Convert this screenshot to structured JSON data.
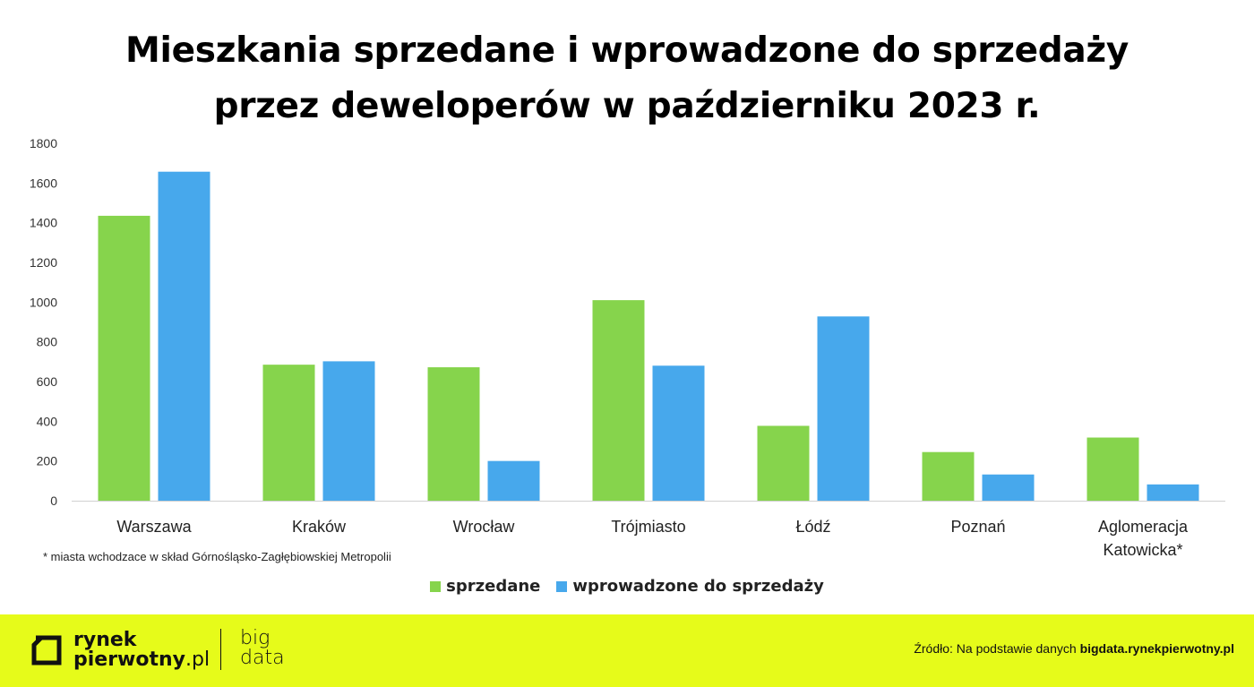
{
  "title_line1": "Mieszkania sprzedane i wprowadzone do sprzedaży",
  "title_line2": "przez deweloperów w październiku 2023 r.",
  "footnote": "* miasta wchodzace w skład Górnośląsko-Zagłębiowskiej Metropolii",
  "legend": [
    {
      "label": "sprzedane",
      "color": "#86d44c"
    },
    {
      "label": "wprowadzone do sprzedaży",
      "color": "#47a8ec"
    }
  ],
  "footer": {
    "logo_line1": "rynek",
    "logo_line2_bold": "pierwotny",
    "logo_line2_suffix": ".pl",
    "bigdata_line1": "big",
    "bigdata_line2": "data",
    "source_prefix": "Źródło: Na podstawie danych",
    "source_bold": "bigdata.rynekpierwotny.pl"
  },
  "chart_data": {
    "type": "bar",
    "categories": [
      "Warszawa",
      "Kraków",
      "Wrocław",
      "Trójmiasto",
      "Łódź",
      "Poznań",
      "Aglomeracja Katowicka*"
    ],
    "series": [
      {
        "name": "sprzedane",
        "color": "#86d44c",
        "values": [
          1435,
          685,
          672,
          1010,
          377,
          245,
          318
        ]
      },
      {
        "name": "wprowadzone do sprzedaży",
        "color": "#47a8ec",
        "values": [
          1657,
          702,
          200,
          680,
          928,
          132,
          82
        ]
      }
    ],
    "yticks": [
      "0",
      "200",
      "400",
      "600",
      "800",
      "1000",
      "1200",
      "1400",
      "1600",
      "1800"
    ],
    "ylim": [
      0,
      1800
    ],
    "grid": false,
    "legend_position": "bottom"
  }
}
